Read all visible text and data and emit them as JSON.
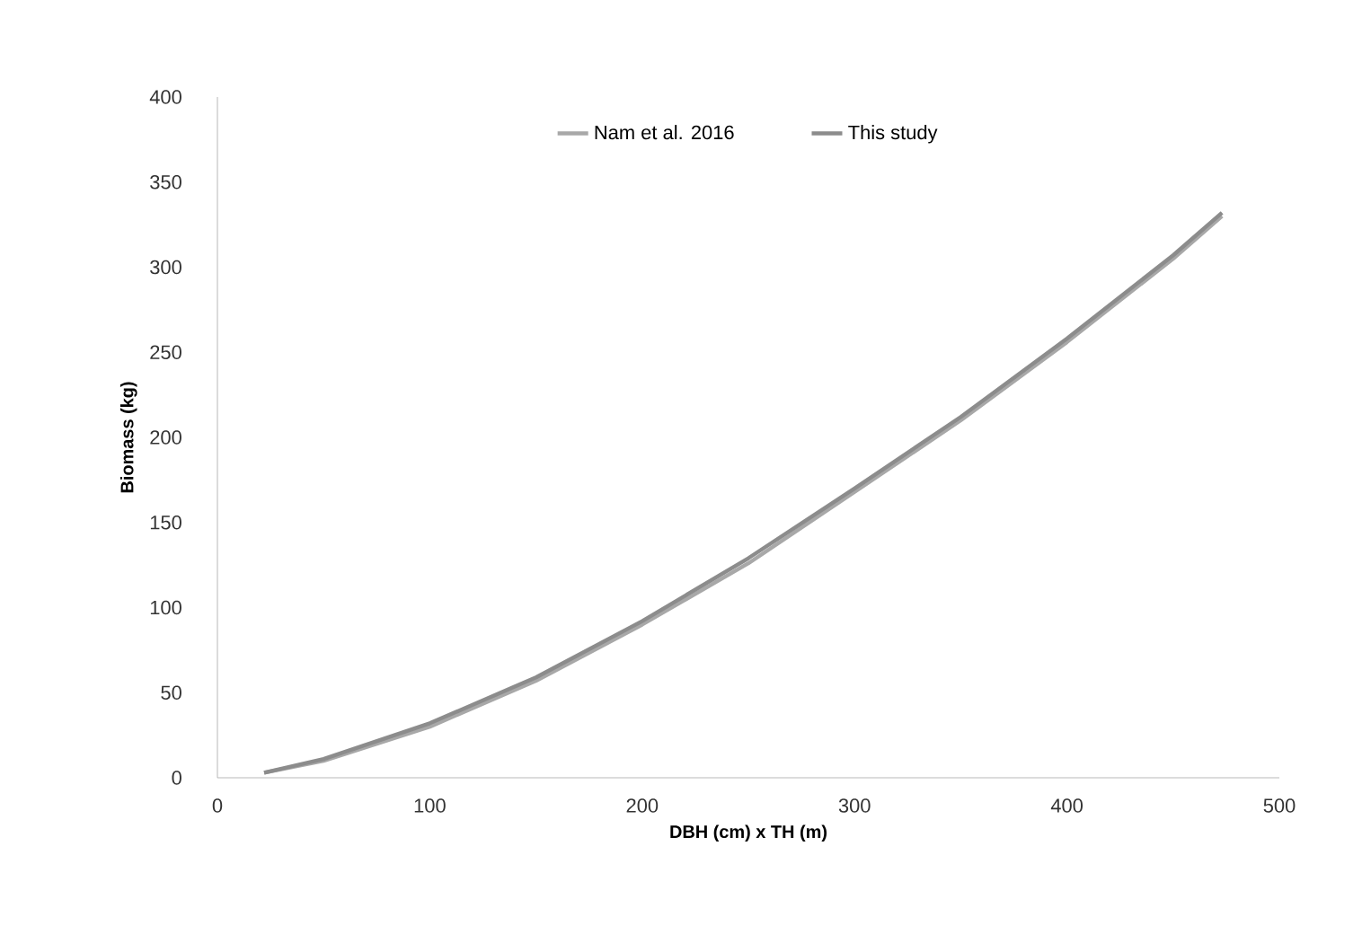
{
  "chart_data": {
    "type": "line",
    "xlabel": "DBH (cm) x TH (m)",
    "ylabel": "Biomass (kg)",
    "x": [
      22,
      50,
      100,
      150,
      200,
      250,
      300,
      350,
      400,
      450,
      473
    ],
    "series": [
      {
        "name": "Nam et al. 2016",
        "color": "#a8a8a8",
        "values": [
          3,
          10,
          30,
          57,
          90,
          126,
          168,
          210,
          256,
          305,
          330
        ]
      },
      {
        "name": "This study",
        "color": "#8c8c8c",
        "values": [
          3,
          11,
          32,
          59,
          92,
          129,
          170,
          212,
          258,
          307,
          332
        ]
      }
    ],
    "xlim": [
      0,
      500
    ],
    "ylim": [
      0,
      400
    ],
    "xticks": [
      0,
      100,
      200,
      300,
      400,
      500
    ],
    "yticks": [
      0,
      50,
      100,
      150,
      200,
      250,
      300,
      350,
      400
    ],
    "grid": false,
    "legend": "top",
    "marker": "none",
    "line_style": "solid"
  }
}
